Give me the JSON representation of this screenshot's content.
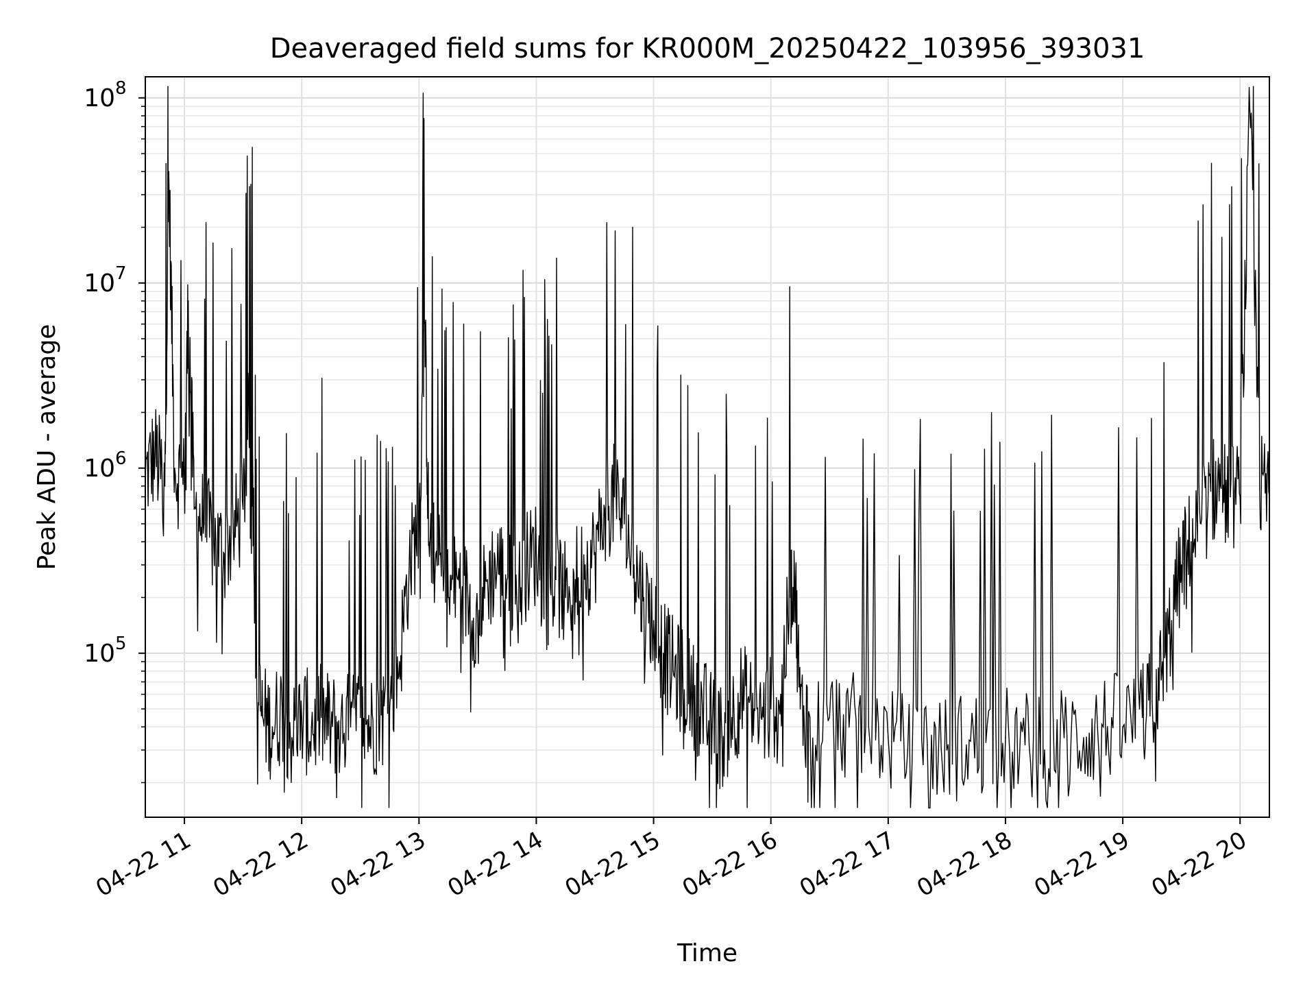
{
  "chart_data": {
    "type": "line",
    "title": "Deaveraged field sums for KR000M_20250422_103956_393031",
    "xlabel": "Time",
    "ylabel": "Peak ADU - average",
    "yscale": "log",
    "ylim": [
      13000,
      130000000
    ],
    "xlim": [
      "04-22 10:40",
      "04-22 20:15"
    ],
    "x_ticks": [
      "04-22 11",
      "04-22 12",
      "04-22 13",
      "04-22 14",
      "04-22 15",
      "04-22 16",
      "04-22 17",
      "04-22 18",
      "04-22 19",
      "04-22 20"
    ],
    "y_ticks": [
      {
        "base": "10",
        "exp": "5",
        "value": 100000
      },
      {
        "base": "10",
        "exp": "6",
        "value": 1000000
      },
      {
        "base": "10",
        "exp": "7",
        "value": 10000000
      },
      {
        "base": "10",
        "exp": "8",
        "value": 100000000
      }
    ],
    "grid": true,
    "line_color": "#000000",
    "series": [
      {
        "x": [
          "04-22 10:40",
          "04-22 10:45",
          "04-22 10:50",
          "04-22 10:52",
          "04-22 10:55",
          "04-22 11:00",
          "04-22 11:02",
          "04-22 11:05",
          "04-22 11:10",
          "04-22 11:15",
          "04-22 11:20",
          "04-22 11:25",
          "04-22 11:30",
          "04-22 11:33",
          "04-22 11:35",
          "04-22 11:37",
          "04-22 11:40",
          "04-22 11:45",
          "04-22 11:50",
          "04-22 11:55",
          "04-22 12:00",
          "04-22 12:05",
          "04-22 12:10",
          "04-22 12:15",
          "04-22 12:20",
          "04-22 12:25",
          "04-22 12:30",
          "04-22 12:35",
          "04-22 12:40",
          "04-22 12:45",
          "04-22 12:50",
          "04-22 12:55",
          "04-22 13:00",
          "04-22 13:03",
          "04-22 13:05",
          "04-22 13:10",
          "04-22 13:15",
          "04-22 13:20",
          "04-22 13:25",
          "04-22 13:30",
          "04-22 13:35",
          "04-22 13:40",
          "04-22 13:45",
          "04-22 13:50",
          "04-22 13:55",
          "04-22 14:00",
          "04-22 14:05",
          "04-22 14:10",
          "04-22 14:15",
          "04-22 14:20",
          "04-22 14:25",
          "04-22 14:30",
          "04-22 14:35",
          "04-22 14:40",
          "04-22 14:45",
          "04-22 14:50",
          "04-22 14:55",
          "04-22 15:00",
          "04-22 15:05",
          "04-22 15:10",
          "04-22 15:15",
          "04-22 15:20",
          "04-22 15:25",
          "04-22 15:30",
          "04-22 15:35",
          "04-22 15:40",
          "04-22 15:45",
          "04-22 15:50",
          "04-22 15:55",
          "04-22 16:00",
          "04-22 16:05",
          "04-22 16:10",
          "04-22 16:12",
          "04-22 16:15",
          "04-22 16:20",
          "04-22 16:30",
          "04-22 16:40",
          "04-22 16:50",
          "04-22 17:00",
          "04-22 17:10",
          "04-22 17:20",
          "04-22 17:30",
          "04-22 17:40",
          "04-22 17:50",
          "04-22 18:00",
          "04-22 18:10",
          "04-22 18:20",
          "04-22 18:30",
          "04-22 18:40",
          "04-22 18:50",
          "04-22 19:00",
          "04-22 19:10",
          "04-22 19:15",
          "04-22 19:20",
          "04-22 19:25",
          "04-22 19:30",
          "04-22 19:35",
          "04-22 19:40",
          "04-22 19:45",
          "04-22 19:50",
          "04-22 19:55",
          "04-22 20:00",
          "04-22 20:05",
          "04-22 20:10",
          "04-22 20:15"
        ],
        "y": [
          900000,
          1200000,
          800000,
          40000000,
          1000000,
          800000,
          8000000,
          600000,
          500000,
          400000,
          350000,
          450000,
          600000,
          2000000,
          900000,
          60000,
          45000,
          40000,
          50000,
          35000,
          45000,
          40000,
          45000,
          40000,
          42000,
          40000,
          45000,
          40000,
          45000,
          50000,
          90000,
          300000,
          500000,
          6000000,
          400000,
          300000,
          200000,
          250000,
          200000,
          150000,
          250000,
          300000,
          250000,
          200000,
          300000,
          350000,
          200000,
          250000,
          200000,
          250000,
          300000,
          350000,
          600000,
          700000,
          500000,
          300000,
          200000,
          150000,
          100000,
          80000,
          70000,
          60000,
          50000,
          40000,
          35000,
          45000,
          60000,
          50000,
          45000,
          50000,
          60000,
          200000,
          300000,
          50000,
          45000,
          45000,
          40000,
          40000,
          35000,
          30000,
          32000,
          30000,
          32000,
          33000,
          35000,
          32000,
          30000,
          35000,
          35000,
          40000,
          40000,
          45000,
          55000,
          80000,
          150000,
          300000,
          400000,
          500000,
          750000,
          800000,
          700000,
          700000,
          85000000,
          800000,
          700000
        ]
      }
    ]
  }
}
